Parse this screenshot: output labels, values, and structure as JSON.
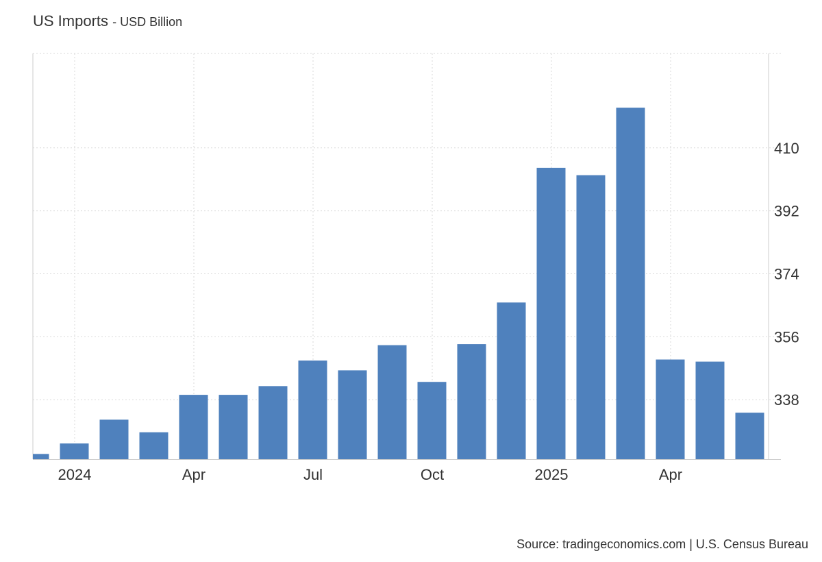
{
  "header": {
    "title": "US Imports",
    "subtitle": "USD Billion"
  },
  "footer": {
    "source": "Source: tradingeconomics.com | U.S. Census Bureau"
  },
  "chart_data": {
    "type": "bar",
    "bar_color": "#4f81bd",
    "x_axis": "dates (monthly)",
    "categories": [
      "2023-12",
      "2024-01",
      "2024-02",
      "2024-03",
      "2024-04",
      "2024-05",
      "2024-06",
      "2024-07",
      "2024-08",
      "2024-09",
      "2024-10",
      "2024-11",
      "2024-12",
      "2025-01",
      "2025-02",
      "2025-03",
      "2025-04",
      "2025-05",
      "2025-06"
    ],
    "values": [
      322.5,
      325.5,
      332.3,
      328.7,
      339.4,
      339.4,
      341.9,
      349.2,
      346.4,
      353.6,
      343.1,
      353.9,
      365.8,
      404.3,
      402.2,
      421.5,
      349.5,
      348.9,
      334.3
    ],
    "x_tick_labels": [
      {
        "label": "2024",
        "at": "2024-01"
      },
      {
        "label": "Apr",
        "at": "2024-04"
      },
      {
        "label": "Jul",
        "at": "2024-07"
      },
      {
        "label": "Oct",
        "at": "2024-10"
      },
      {
        "label": "2025",
        "at": "2025-01"
      },
      {
        "label": "Apr",
        "at": "2025-04"
      }
    ],
    "y_ticks": [
      338,
      356,
      374,
      392,
      410
    ],
    "ylim": [
      321,
      437
    ],
    "y_axis_position": "right",
    "grid": true,
    "legend": "none"
  }
}
